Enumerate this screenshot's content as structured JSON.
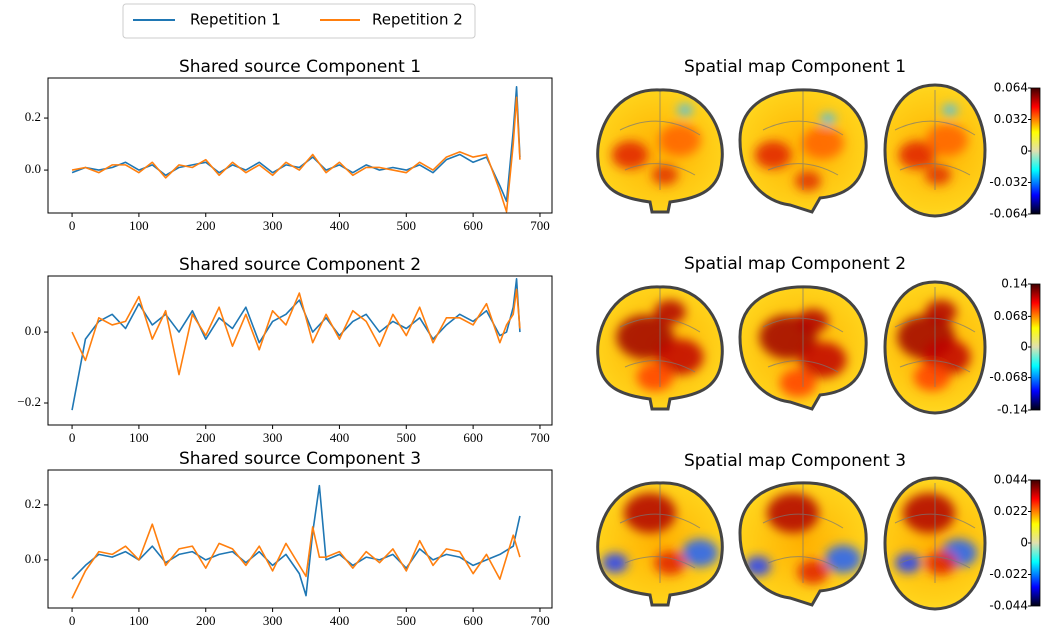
{
  "chart_data": [
    {
      "type": "line",
      "title": "Shared source Component 1",
      "x": [
        0,
        20,
        40,
        60,
        80,
        100,
        120,
        140,
        160,
        180,
        200,
        220,
        240,
        260,
        280,
        300,
        320,
        340,
        360,
        380,
        400,
        420,
        440,
        460,
        480,
        500,
        520,
        540,
        560,
        580,
        600,
        620,
        640,
        650,
        660,
        665,
        670
      ],
      "series": [
        {
          "name": "Repetition 1",
          "color": "#1f77b4",
          "values": [
            -0.01,
            0.01,
            0.0,
            0.01,
            0.03,
            0.0,
            0.02,
            -0.02,
            0.01,
            0.02,
            0.03,
            -0.01,
            0.02,
            0.0,
            0.03,
            -0.01,
            0.02,
            0.01,
            0.05,
            0.0,
            0.02,
            -0.01,
            0.02,
            0.0,
            0.01,
            0.0,
            0.02,
            -0.01,
            0.04,
            0.06,
            0.03,
            0.05,
            -0.06,
            -0.12,
            0.15,
            0.32,
            0.05
          ]
        },
        {
          "name": "Repetition 2",
          "color": "#ff7f0e",
          "values": [
            0.0,
            0.01,
            -0.01,
            0.02,
            0.02,
            -0.01,
            0.03,
            -0.03,
            0.02,
            0.01,
            0.04,
            -0.02,
            0.03,
            -0.01,
            0.02,
            -0.02,
            0.03,
            0.0,
            0.06,
            -0.01,
            0.03,
            -0.02,
            0.01,
            0.01,
            0.0,
            -0.01,
            0.03,
            0.0,
            0.05,
            0.07,
            0.05,
            0.06,
            -0.08,
            -0.16,
            0.1,
            0.28,
            0.04
          ]
        }
      ],
      "xlim": [
        -36,
        718
      ],
      "xticks": [
        0,
        100,
        200,
        300,
        400,
        500,
        600,
        700
      ],
      "ylim": [
        -0.165,
        0.354
      ],
      "yticks": [
        {
          "value": 0,
          "label": "0.0"
        },
        0.2
      ]
    },
    {
      "type": "line",
      "title": "Shared source Component 2",
      "x": [
        0,
        20,
        40,
        60,
        80,
        100,
        120,
        140,
        160,
        180,
        200,
        220,
        240,
        260,
        280,
        300,
        320,
        340,
        360,
        380,
        400,
        420,
        440,
        460,
        480,
        500,
        520,
        540,
        560,
        580,
        600,
        620,
        640,
        650,
        660,
        665,
        670
      ],
      "series": [
        {
          "color": "#1f77b4",
          "values": [
            -0.22,
            -0.02,
            0.03,
            0.05,
            0.01,
            0.08,
            0.02,
            0.05,
            0.0,
            0.06,
            -0.02,
            0.04,
            0.01,
            0.07,
            -0.03,
            0.03,
            0.05,
            0.09,
            0.0,
            0.04,
            -0.01,
            0.03,
            0.05,
            0.0,
            0.03,
            0.01,
            0.04,
            -0.02,
            0.02,
            0.05,
            0.03,
            0.06,
            -0.01,
            0.0,
            0.07,
            0.15,
            0.0
          ]
        },
        {
          "color": "#ff7f0e",
          "values": [
            0.0,
            -0.08,
            0.04,
            0.02,
            0.03,
            0.1,
            -0.02,
            0.06,
            -0.12,
            0.05,
            -0.01,
            0.07,
            -0.04,
            0.05,
            -0.05,
            0.06,
            0.02,
            0.11,
            -0.03,
            0.05,
            -0.02,
            0.06,
            0.03,
            -0.04,
            0.05,
            -0.01,
            0.07,
            -0.03,
            0.04,
            0.04,
            0.02,
            0.08,
            -0.03,
            0.02,
            0.05,
            0.12,
            0.01
          ]
        }
      ],
      "xlim": [
        -36,
        718
      ],
      "xticks": [
        0,
        100,
        200,
        300,
        400,
        500,
        600,
        700
      ],
      "ylim": [
        -0.262,
        0.158
      ],
      "yticks": [
        {
          "value": -0.2,
          "label": "−0.2"
        },
        {
          "value": 0,
          "label": "0.0"
        }
      ]
    },
    {
      "type": "line",
      "title": "Shared source Component 3",
      "x": [
        0,
        20,
        40,
        60,
        80,
        100,
        120,
        140,
        160,
        180,
        200,
        220,
        240,
        260,
        280,
        300,
        320,
        340,
        350,
        360,
        370,
        380,
        400,
        420,
        440,
        460,
        480,
        500,
        520,
        540,
        560,
        580,
        600,
        620,
        640,
        660,
        670
      ],
      "series": [
        {
          "color": "#1f77b4",
          "values": [
            -0.07,
            -0.02,
            0.02,
            0.01,
            0.03,
            0.0,
            0.05,
            -0.01,
            0.02,
            0.03,
            0.0,
            0.02,
            0.03,
            -0.01,
            0.03,
            -0.02,
            0.02,
            -0.05,
            -0.13,
            0.1,
            0.27,
            0.0,
            0.02,
            -0.02,
            0.01,
            0.0,
            0.02,
            -0.03,
            0.04,
            0.0,
            0.02,
            0.01,
            -0.02,
            0.0,
            0.02,
            0.05,
            0.16
          ]
        },
        {
          "color": "#ff7f0e",
          "values": [
            -0.14,
            -0.04,
            0.03,
            0.02,
            0.05,
            0.0,
            0.13,
            -0.02,
            0.04,
            0.05,
            -0.03,
            0.06,
            0.04,
            -0.02,
            0.05,
            -0.04,
            0.06,
            -0.02,
            -0.06,
            0.12,
            0.01,
            0.01,
            0.03,
            -0.03,
            0.03,
            -0.01,
            0.04,
            -0.04,
            0.07,
            -0.02,
            0.04,
            0.03,
            -0.05,
            0.02,
            -0.07,
            0.09,
            0.01
          ]
        }
      ],
      "xlim": [
        -36,
        718
      ],
      "xticks": [
        0,
        100,
        200,
        300,
        400,
        500,
        600,
        700
      ],
      "ylim": [
        -0.175,
        0.327
      ],
      "yticks": [
        {
          "value": 0,
          "label": "0.0"
        },
        0.2
      ]
    },
    {
      "type": "brainmap",
      "title": "Spatial map Component 1",
      "clim": [
        -0.064,
        0.064
      ],
      "cticks": [
        0.064,
        0.032,
        0,
        -0.032,
        -0.064
      ]
    },
    {
      "type": "brainmap",
      "title": "Spatial map Component 2",
      "clim": [
        -0.14,
        0.14
      ],
      "cticks": [
        0.14,
        0.068,
        0,
        -0.068,
        -0.14
      ]
    },
    {
      "type": "brainmap",
      "title": "Spatial map Component 3",
      "clim": [
        -0.044,
        0.044
      ],
      "cticks": [
        0.044,
        0.022,
        0,
        -0.022,
        -0.044
      ]
    }
  ]
}
